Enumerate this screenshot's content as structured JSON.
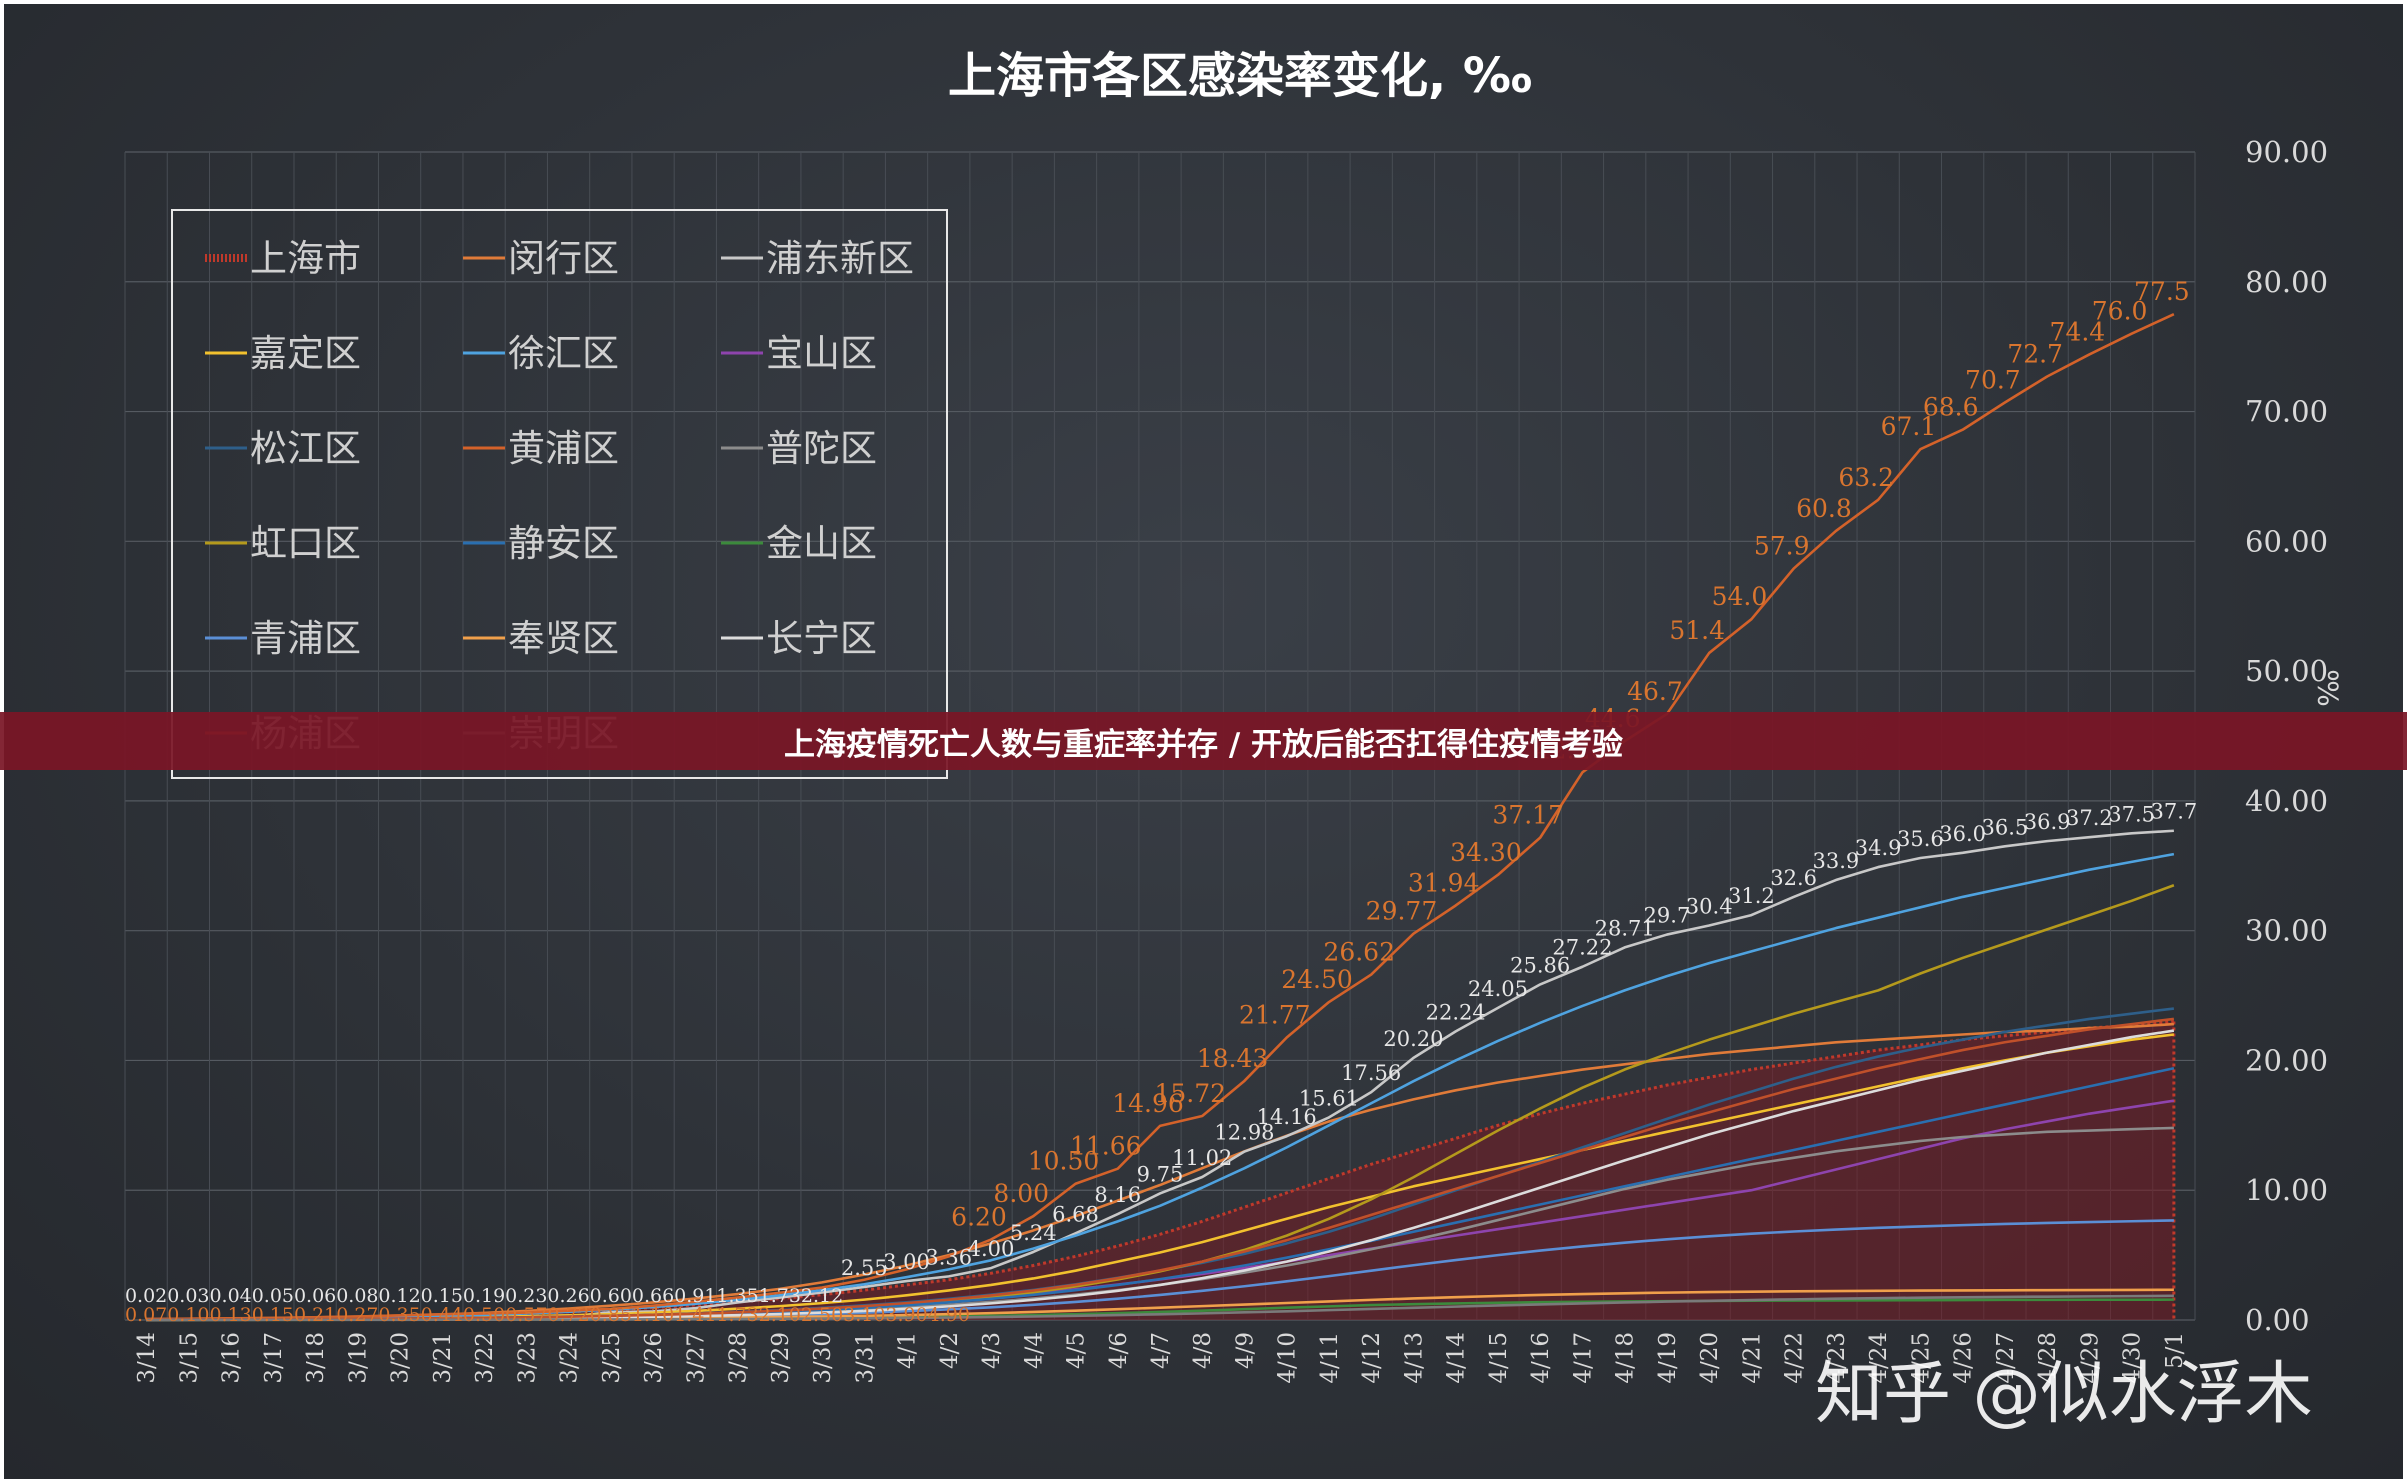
{
  "chart_data": {
    "type": "line",
    "title": "上海市各区感染率变化, ‰",
    "ylabel": "‰",
    "ylim": [
      0,
      90
    ],
    "yticks": [
      "0.00",
      "10.00",
      "20.00",
      "30.00",
      "40.00",
      "50.00",
      "60.00",
      "70.00",
      "80.00",
      "90.00"
    ],
    "grid": true,
    "legend_position": "top-left",
    "x": [
      "3/14",
      "3/15",
      "3/16",
      "3/17",
      "3/18",
      "3/19",
      "3/20",
      "3/21",
      "3/22",
      "3/23",
      "3/24",
      "3/25",
      "3/26",
      "3/27",
      "3/28",
      "3/29",
      "3/30",
      "3/31",
      "4/1",
      "4/2",
      "4/3",
      "4/4",
      "4/5",
      "4/6",
      "4/7",
      "4/8",
      "4/9",
      "4/10",
      "4/11",
      "4/12",
      "4/13",
      "4/14",
      "4/15",
      "4/16",
      "4/17",
      "4/18",
      "4/19",
      "4/20",
      "4/21",
      "4/22",
      "4/23",
      "4/24",
      "4/25",
      "4/26",
      "4/27",
      "4/28",
      "4/29",
      "4/30",
      "5/1"
    ],
    "series": [
      {
        "name": "上海市",
        "color": "#c0392b",
        "style": "dotted-area",
        "values": [
          0.04,
          0.06,
          0.08,
          0.1,
          0.13,
          0.17,
          0.22,
          0.29,
          0.38,
          0.5,
          0.63,
          0.78,
          0.95,
          1.15,
          1.4,
          1.65,
          1.95,
          2.3,
          2.7,
          3.1,
          3.6,
          4.2,
          4.9,
          5.7,
          6.6,
          7.6,
          8.7,
          9.8,
          10.9,
          12.0,
          13.0,
          14.0,
          15.0,
          15.9,
          16.7,
          17.4,
          18.1,
          18.7,
          19.3,
          19.8,
          20.3,
          20.8,
          21.2,
          21.6,
          21.9,
          22.2,
          22.5,
          22.7,
          23.0
        ]
      },
      {
        "name": "闵行区",
        "color": "#e07b39",
        "values": [
          0.07,
          0.09,
          0.12,
          0.16,
          0.21,
          0.27,
          0.34,
          0.43,
          0.55,
          0.7,
          0.88,
          1.1,
          1.35,
          1.65,
          2.0,
          2.4,
          2.9,
          3.5,
          4.2,
          5.0,
          5.9,
          6.9,
          8.0,
          9.2,
          10.4,
          11.7,
          13.0,
          14.2,
          15.3,
          16.2,
          17.0,
          17.7,
          18.3,
          18.8,
          19.3,
          19.7,
          20.1,
          20.5,
          20.8,
          21.1,
          21.4,
          21.6,
          21.8,
          22.0,
          22.2,
          22.3,
          22.5,
          22.6,
          22.8
        ]
      },
      {
        "name": "浦东新区",
        "color": "#c8c8c8",
        "values": [
          0.02,
          0.03,
          0.04,
          0.05,
          0.06,
          0.08,
          0.12,
          0.15,
          0.19,
          0.23,
          0.26,
          0.6,
          0.66,
          0.91,
          1.35,
          1.73,
          2.12,
          2.55,
          3.0,
          3.36,
          4.0,
          5.24,
          6.68,
          8.16,
          9.75,
          11.02,
          12.98,
          14.16,
          15.61,
          17.56,
          20.2,
          22.24,
          24.05,
          25.86,
          27.22,
          28.71,
          29.7,
          30.4,
          31.2,
          32.6,
          33.9,
          34.9,
          35.6,
          36.0,
          36.5,
          36.9,
          37.2,
          37.5,
          37.7
        ]
      },
      {
        "name": "嘉定区",
        "color": "#f2c12e",
        "values": [
          0.03,
          0.04,
          0.05,
          0.07,
          0.09,
          0.11,
          0.14,
          0.18,
          0.23,
          0.29,
          0.36,
          0.45,
          0.56,
          0.7,
          0.87,
          1.07,
          1.3,
          1.57,
          1.9,
          2.28,
          2.7,
          3.2,
          3.8,
          4.5,
          5.2,
          6.0,
          6.9,
          7.8,
          8.7,
          9.5,
          10.3,
          11.0,
          11.7,
          12.4,
          13.1,
          13.8,
          14.5,
          15.2,
          15.9,
          16.6,
          17.3,
          18.0,
          18.7,
          19.4,
          20.0,
          20.6,
          21.1,
          21.6,
          22.0
        ]
      },
      {
        "name": "徐汇区",
        "color": "#4fa3e0",
        "values": [
          0.05,
          0.07,
          0.09,
          0.12,
          0.15,
          0.19,
          0.24,
          0.31,
          0.4,
          0.5,
          0.63,
          0.8,
          1.0,
          1.25,
          1.55,
          1.9,
          2.3,
          2.75,
          3.3,
          3.9,
          4.6,
          5.5,
          6.5,
          7.6,
          8.8,
          10.2,
          11.7,
          13.3,
          15.0,
          16.7,
          18.4,
          20.0,
          21.5,
          22.9,
          24.2,
          25.4,
          26.5,
          27.5,
          28.4,
          29.3,
          30.2,
          31.0,
          31.8,
          32.6,
          33.3,
          34.0,
          34.7,
          35.3,
          35.9
        ]
      },
      {
        "name": "宝山区",
        "color": "#8e44ad",
        "values": [
          0.02,
          0.03,
          0.04,
          0.05,
          0.06,
          0.08,
          0.1,
          0.13,
          0.17,
          0.21,
          0.26,
          0.32,
          0.4,
          0.5,
          0.62,
          0.76,
          0.92,
          1.1,
          1.3,
          1.52,
          1.77,
          2.05,
          2.37,
          2.73,
          3.12,
          3.55,
          4.0,
          4.5,
          5.0,
          5.5,
          6.0,
          6.5,
          7.0,
          7.5,
          8.0,
          8.5,
          9.0,
          9.5,
          10.0,
          10.8,
          11.6,
          12.4,
          13.2,
          14.0,
          14.7,
          15.3,
          15.9,
          16.4,
          16.9
        ]
      },
      {
        "name": "松江区",
        "color": "#2e5f8a",
        "values": [
          0.02,
          0.03,
          0.04,
          0.05,
          0.06,
          0.08,
          0.1,
          0.13,
          0.17,
          0.21,
          0.26,
          0.32,
          0.4,
          0.5,
          0.62,
          0.76,
          0.93,
          1.13,
          1.36,
          1.63,
          1.95,
          2.32,
          2.75,
          3.25,
          3.8,
          4.4,
          5.1,
          5.9,
          6.8,
          7.8,
          8.9,
          10.0,
          11.1,
          12.2,
          13.3,
          14.4,
          15.5,
          16.6,
          17.6,
          18.6,
          19.5,
          20.3,
          21.0,
          21.6,
          22.2,
          22.7,
          23.2,
          23.6,
          24.0
        ]
      },
      {
        "name": "黄浦区",
        "color": "#d4622a",
        "values": [
          0.07,
          0.1,
          0.13,
          0.15,
          0.21,
          0.27,
          0.35,
          0.44,
          0.5,
          0.57,
          0.72,
          0.85,
          1.1,
          1.41,
          1.73,
          2.1,
          2.5,
          3.1,
          3.9,
          4.9,
          6.2,
          8.0,
          10.5,
          11.66,
          14.96,
          15.72,
          18.43,
          21.77,
          24.5,
          26.62,
          29.77,
          31.94,
          34.3,
          37.17,
          42.2,
          44.6,
          46.7,
          51.4,
          54.0,
          57.9,
          60.8,
          63.2,
          67.1,
          68.6,
          70.7,
          72.7,
          74.4,
          76.0,
          77.5
        ]
      },
      {
        "name": "普陀区",
        "color": "#8c8c8c",
        "values": [
          0.01,
          0.02,
          0.03,
          0.04,
          0.05,
          0.06,
          0.08,
          0.1,
          0.13,
          0.16,
          0.2,
          0.25,
          0.31,
          0.38,
          0.46,
          0.56,
          0.68,
          0.82,
          0.98,
          1.17,
          1.39,
          1.65,
          1.95,
          2.3,
          2.7,
          3.15,
          3.65,
          4.2,
          4.8,
          5.45,
          6.15,
          6.9,
          7.7,
          8.5,
          9.3,
          10.1,
          10.8,
          11.4,
          12.0,
          12.5,
          13.0,
          13.4,
          13.8,
          14.1,
          14.3,
          14.5,
          14.6,
          14.7,
          14.8
        ]
      },
      {
        "name": "虹口区",
        "color": "#b59a1c",
        "values": [
          0.01,
          0.02,
          0.03,
          0.04,
          0.05,
          0.06,
          0.08,
          0.1,
          0.13,
          0.16,
          0.2,
          0.25,
          0.31,
          0.39,
          0.49,
          0.61,
          0.76,
          0.94,
          1.16,
          1.43,
          1.75,
          2.13,
          2.58,
          3.12,
          3.75,
          4.5,
          5.4,
          6.5,
          7.8,
          9.3,
          11.0,
          12.8,
          14.6,
          16.3,
          17.9,
          19.3,
          20.5,
          21.6,
          22.6,
          23.6,
          24.5,
          25.4,
          26.7,
          27.9,
          29.0,
          30.1,
          31.2,
          32.3,
          33.5
        ]
      },
      {
        "name": "静安区",
        "color": "#2a6fb0",
        "values": [
          0.02,
          0.03,
          0.04,
          0.05,
          0.06,
          0.07,
          0.09,
          0.11,
          0.14,
          0.17,
          0.21,
          0.26,
          0.32,
          0.4,
          0.5,
          0.62,
          0.76,
          0.93,
          1.13,
          1.36,
          1.63,
          1.94,
          2.3,
          2.7,
          3.15,
          3.65,
          4.2,
          4.8,
          5.45,
          6.1,
          6.8,
          7.5,
          8.2,
          8.9,
          9.6,
          10.3,
          11.0,
          11.7,
          12.4,
          13.1,
          13.8,
          14.5,
          15.2,
          15.9,
          16.6,
          17.3,
          18.0,
          18.7,
          19.4
        ]
      },
      {
        "name": "金山区",
        "color": "#3c8a3c",
        "values": [
          0.0,
          0.0,
          0.01,
          0.01,
          0.01,
          0.02,
          0.02,
          0.03,
          0.03,
          0.04,
          0.05,
          0.06,
          0.07,
          0.09,
          0.11,
          0.13,
          0.16,
          0.19,
          0.23,
          0.27,
          0.32,
          0.38,
          0.45,
          0.53,
          0.62,
          0.72,
          0.83,
          0.95,
          1.05,
          1.15,
          1.22,
          1.28,
          1.33,
          1.37,
          1.4,
          1.43,
          1.45,
          1.47,
          1.49,
          1.5,
          1.51,
          1.52,
          1.53,
          1.54,
          1.55,
          1.55,
          1.56,
          1.56,
          1.57
        ]
      },
      {
        "name": "青浦区",
        "color": "#5b8fd6",
        "values": [
          0.01,
          0.01,
          0.02,
          0.02,
          0.03,
          0.04,
          0.05,
          0.06,
          0.08,
          0.1,
          0.13,
          0.16,
          0.2,
          0.25,
          0.31,
          0.38,
          0.46,
          0.56,
          0.68,
          0.82,
          0.98,
          1.17,
          1.39,
          1.64,
          1.93,
          2.25,
          2.6,
          2.98,
          3.38,
          3.8,
          4.22,
          4.62,
          5.0,
          5.35,
          5.67,
          5.96,
          6.22,
          6.45,
          6.65,
          6.82,
          6.97,
          7.1,
          7.21,
          7.31,
          7.4,
          7.48,
          7.55,
          7.61,
          7.67
        ]
      },
      {
        "name": "奉贤区",
        "color": "#f0a04b",
        "values": [
          0.01,
          0.01,
          0.02,
          0.02,
          0.03,
          0.03,
          0.04,
          0.05,
          0.06,
          0.07,
          0.09,
          0.11,
          0.13,
          0.16,
          0.19,
          0.23,
          0.27,
          0.32,
          0.38,
          0.45,
          0.53,
          0.62,
          0.72,
          0.83,
          0.95,
          1.07,
          1.19,
          1.31,
          1.43,
          1.55,
          1.66,
          1.76,
          1.85,
          1.93,
          2.0,
          2.06,
          2.11,
          2.15,
          2.18,
          2.21,
          2.23,
          2.25,
          2.27,
          2.28,
          2.29,
          2.3,
          2.31,
          2.32,
          2.33
        ]
      },
      {
        "name": "长宁区",
        "color": "#dcdcdc",
        "values": [
          0.01,
          0.02,
          0.02,
          0.03,
          0.04,
          0.05,
          0.06,
          0.08,
          0.1,
          0.12,
          0.15,
          0.19,
          0.24,
          0.3,
          0.37,
          0.46,
          0.57,
          0.7,
          0.86,
          1.05,
          1.28,
          1.55,
          1.87,
          2.25,
          2.7,
          3.22,
          3.82,
          4.5,
          5.28,
          6.15,
          7.1,
          8.1,
          9.15,
          10.2,
          11.25,
          12.3,
          13.3,
          14.3,
          15.2,
          16.1,
          16.9,
          17.7,
          18.5,
          19.2,
          19.9,
          20.6,
          21.2,
          21.8,
          22.3
        ]
      },
      {
        "name": "杨浦区",
        "color": "#c0502a",
        "values": [
          0.02,
          0.03,
          0.04,
          0.05,
          0.06,
          0.08,
          0.1,
          0.13,
          0.16,
          0.2,
          0.25,
          0.31,
          0.39,
          0.48,
          0.59,
          0.72,
          0.88,
          1.07,
          1.3,
          1.57,
          1.89,
          2.27,
          2.71,
          3.22,
          3.82,
          4.5,
          5.28,
          6.15,
          7.1,
          8.1,
          9.1,
          10.1,
          11.1,
          12.1,
          13.1,
          14.1,
          15.1,
          16.0,
          16.9,
          17.8,
          18.6,
          19.4,
          20.1,
          20.8,
          21.4,
          21.9,
          22.4,
          22.8,
          23.2
        ]
      },
      {
        "name": "崇明区",
        "color": "#7a7a7a",
        "values": [
          0.0,
          0.0,
          0.0,
          0.01,
          0.01,
          0.01,
          0.01,
          0.02,
          0.02,
          0.03,
          0.03,
          0.04,
          0.05,
          0.06,
          0.07,
          0.09,
          0.11,
          0.13,
          0.16,
          0.19,
          0.23,
          0.27,
          0.32,
          0.38,
          0.44,
          0.51,
          0.59,
          0.67,
          0.76,
          0.85,
          0.94,
          1.03,
          1.12,
          1.2,
          1.28,
          1.35,
          1.42,
          1.48,
          1.54,
          1.59,
          1.64,
          1.68,
          1.72,
          1.75,
          1.78,
          1.8,
          1.82,
          1.84,
          1.86
        ]
      }
    ],
    "data_labels": {
      "浦东新区": [
        "0.02",
        "0.03",
        "0.04",
        "0.05",
        "0.06",
        "0.08",
        "0.12",
        "0.15",
        "0.19",
        "0.23",
        "0.26",
        "0.60",
        "0.66",
        "0.91",
        "1.35",
        "1.73",
        "2.12",
        "2.55",
        "3.00",
        "3.36",
        "4.00",
        "5.24",
        "6.68",
        "8.16",
        "9.75",
        "11.02",
        "12.98",
        "14.16",
        "15.61",
        "17.56",
        "20.20",
        "22.24",
        "24.05",
        "25.86",
        "27.22",
        "28.71",
        "29.7",
        "30.4",
        "31.2",
        "32.6",
        "33.9",
        "34.9",
        "35.6",
        "36.0",
        "36.5",
        "36.9",
        "37.2",
        "37.5",
        "37.7"
      ],
      "黄浦区": [
        "0.07",
        "0.10",
        "0.13",
        "0.15",
        "0.21",
        "0.27",
        "0.35",
        "0.44",
        "0.50",
        "0.57",
        "0.72",
        "0.85",
        "1.10",
        "1.41",
        "1.73",
        "2.10",
        "2.50",
        "3.10",
        "3.90",
        "4.90",
        "6.20",
        "8.00",
        "10.50",
        "11.66",
        "14.96",
        "15.72",
        "18.43",
        "21.77",
        "24.50",
        "26.62",
        "29.77",
        "31.94",
        "34.30",
        "37.17",
        "42.20",
        "44.6",
        "46.7",
        "51.4",
        "54.0",
        "57.9",
        "60.8",
        "63.2",
        "67.1",
        "68.6",
        "70.7",
        "72.7",
        "74.4",
        "76.0",
        "77.5"
      ]
    }
  },
  "banner_text": "上海疫情死亡人数与重症率并存 / 开放后能否扛得住疫情考验",
  "watermark_text": "知乎 @似水浮木"
}
